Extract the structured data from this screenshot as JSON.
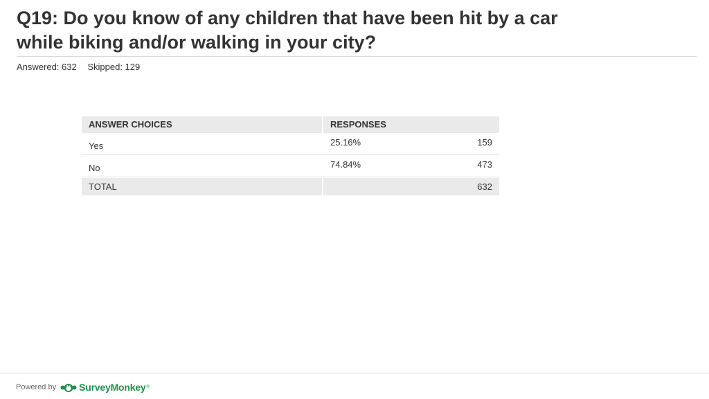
{
  "question": {
    "title_line1": "Q19: Do you know of any children that have been hit by a car",
    "title_line2": "while biking and/or walking in your city?"
  },
  "stats": {
    "answered": "Answered: 632",
    "skipped": "Skipped: 129"
  },
  "table": {
    "headers": {
      "choices": "ANSWER CHOICES",
      "responses": "RESPONSES"
    },
    "rows": [
      {
        "choice": "Yes",
        "percent": "25.16%",
        "count": "159"
      },
      {
        "choice": "No",
        "percent": "74.84%",
        "count": "473"
      }
    ],
    "total": {
      "label": "TOTAL",
      "count": "632"
    }
  },
  "footer": {
    "powered_by": "Powered by",
    "brand": "SurveyMonkey",
    "brand_mark": "®",
    "brand_color": "#1f8f4e",
    "brand_icon": "surveymonkey-logo-icon"
  }
}
